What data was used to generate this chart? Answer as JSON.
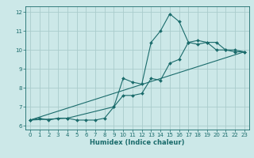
{
  "title": "",
  "xlabel": "Humidex (Indice chaleur)",
  "xlim": [
    -0.5,
    23.5
  ],
  "ylim": [
    5.8,
    12.3
  ],
  "background_color": "#cce8e8",
  "grid_color": "#aacccc",
  "line_color": "#1a6b6b",
  "xticks": [
    0,
    1,
    2,
    3,
    4,
    5,
    6,
    7,
    8,
    9,
    10,
    11,
    12,
    13,
    14,
    15,
    16,
    17,
    18,
    19,
    20,
    21,
    22,
    23
  ],
  "yticks": [
    6,
    7,
    8,
    9,
    10,
    11,
    12
  ],
  "curve1_x": [
    0,
    1,
    2,
    3,
    4,
    5,
    6,
    7,
    8,
    9,
    10,
    11,
    12,
    13,
    14,
    15,
    16,
    17,
    18,
    19,
    20,
    21,
    22,
    23
  ],
  "curve1_y": [
    6.3,
    6.4,
    6.3,
    6.4,
    6.4,
    6.3,
    6.3,
    6.3,
    6.4,
    7.0,
    8.5,
    8.3,
    8.2,
    10.4,
    11.0,
    11.9,
    11.5,
    10.4,
    10.3,
    10.4,
    10.0,
    10.0,
    9.9,
    9.9
  ],
  "curve2_x": [
    0,
    4,
    9,
    10,
    11,
    12,
    13,
    14,
    15,
    16,
    17,
    18,
    19,
    20,
    21,
    22,
    23
  ],
  "curve2_y": [
    6.3,
    6.4,
    7.0,
    7.6,
    7.6,
    7.7,
    8.5,
    8.4,
    9.3,
    9.5,
    10.4,
    10.5,
    10.4,
    10.4,
    10.0,
    10.0,
    9.9
  ],
  "curve3_x": [
    0,
    23
  ],
  "curve3_y": [
    6.3,
    9.9
  ],
  "tick_fontsize": 5.0,
  "xlabel_fontsize": 6.0,
  "marker_size": 2.0,
  "line_width": 0.8
}
